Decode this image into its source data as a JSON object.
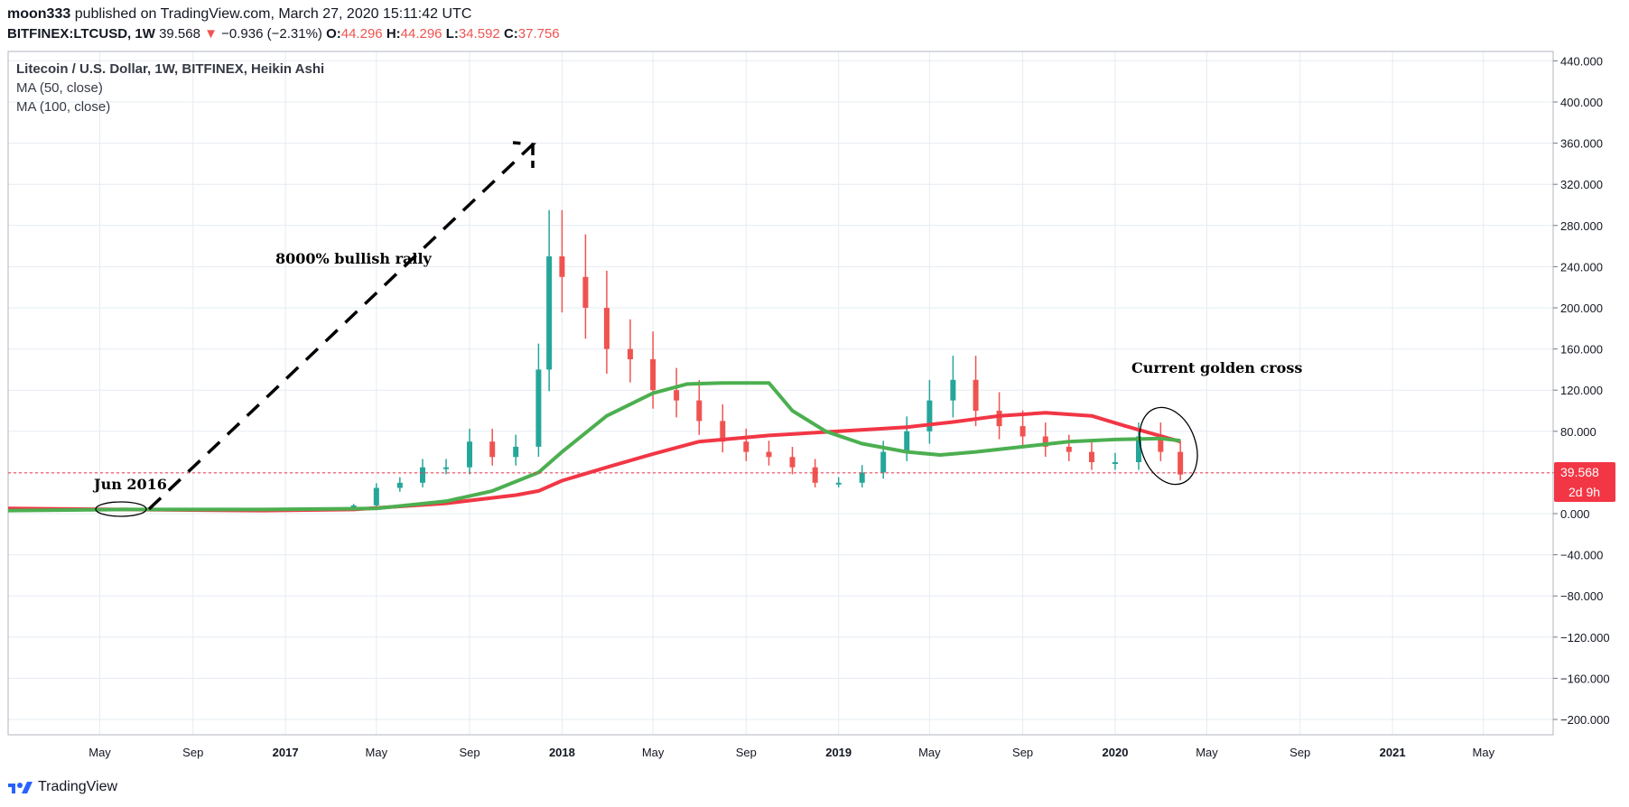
{
  "header": {
    "author": "moon333",
    "published_text": "published on TradingView.com, March 27, 2020 15:11:42 UTC",
    "symbol": "BITFINEX:LTCUSD, 1W",
    "last": "39.568",
    "down_arrow": "▼",
    "change": "−0.936 (−2.31%)",
    "open_label": "O:",
    "open": "44.296",
    "high_label": "H:",
    "high": "44.296",
    "low_label": "L:",
    "low": "34.592",
    "close_label": "C:",
    "close": "37.756"
  },
  "legend": {
    "title": "Litecoin / U.S. Dollar, 1W, BITFINEX, Heikin Ashi",
    "ma1": "MA (50, close)",
    "ma2": "MA (100, close)"
  },
  "price_tag": {
    "value": "39.568",
    "countdown": "2d 9h"
  },
  "brand": {
    "name": "TradingView"
  },
  "colors": {
    "up": "#26a69a",
    "down": "#ef5350",
    "ma50": "#4caf50",
    "ma100": "#f23645",
    "price_line": "#f23645",
    "grid": "#e6ecf2"
  },
  "chart_data": {
    "type": "line",
    "title": "Litecoin / U.S. Dollar, 1W, BITFINEX, Heikin Ashi",
    "ylim": [
      -210,
      450
    ],
    "y_ticks": [
      "440.000",
      "400.000",
      "360.000",
      "320.000",
      "280.000",
      "240.000",
      "200.000",
      "160.000",
      "120.000",
      "80.000",
      "40.000",
      "0.000",
      "−40.000",
      "−80.000",
      "−120.000",
      "−160.000",
      "−200.000"
    ],
    "x_range": [
      "2016-01-01",
      "2021-08-01"
    ],
    "x_ticks": [
      {
        "label": "May",
        "date": "2016-05-01"
      },
      {
        "label": "Sep",
        "date": "2016-09-01"
      },
      {
        "label": "2017",
        "date": "2017-01-01"
      },
      {
        "label": "May",
        "date": "2017-05-01"
      },
      {
        "label": "Sep",
        "date": "2017-09-01"
      },
      {
        "label": "2018",
        "date": "2018-01-01"
      },
      {
        "label": "May",
        "date": "2018-05-01"
      },
      {
        "label": "Sep",
        "date": "2018-09-01"
      },
      {
        "label": "2019",
        "date": "2019-01-01"
      },
      {
        "label": "May",
        "date": "2019-05-01"
      },
      {
        "label": "Sep",
        "date": "2019-09-01"
      },
      {
        "label": "2020",
        "date": "2020-01-01"
      },
      {
        "label": "May",
        "date": "2020-05-01"
      },
      {
        "label": "Sep",
        "date": "2020-09-01"
      },
      {
        "label": "2021",
        "date": "2021-01-01"
      },
      {
        "label": "May",
        "date": "2021-05-01"
      }
    ],
    "series": [
      {
        "name": "MA (50, close)",
        "color": "#4caf50",
        "x": [
          "2016-01-01",
          "2016-06-01",
          "2016-12-01",
          "2017-05-01",
          "2017-08-01",
          "2017-10-01",
          "2017-12-01",
          "2018-01-01",
          "2018-03-01",
          "2018-05-01",
          "2018-06-15",
          "2018-08-01",
          "2018-10-01",
          "2018-11-01",
          "2018-12-15",
          "2019-02-01",
          "2019-04-01",
          "2019-05-15",
          "2019-07-01",
          "2019-09-01",
          "2019-11-01",
          "2020-01-01",
          "2020-03-01",
          "2020-03-27"
        ],
        "values": [
          3,
          4,
          4,
          5,
          12,
          22,
          40,
          60,
          95,
          117,
          126,
          127,
          127,
          100,
          80,
          68,
          60,
          57,
          60,
          65,
          70,
          72,
          73,
          71
        ]
      },
      {
        "name": "MA (100, close)",
        "color": "#f23645",
        "x": [
          "2016-01-01",
          "2016-06-01",
          "2016-12-01",
          "2017-04-01",
          "2017-08-01",
          "2017-11-01",
          "2017-12-01",
          "2018-01-01",
          "2018-03-01",
          "2018-05-01",
          "2018-07-01",
          "2018-10-01",
          "2019-01-01",
          "2019-04-01",
          "2019-06-01",
          "2019-08-01",
          "2019-10-01",
          "2019-12-01",
          "2020-01-15",
          "2020-03-27"
        ],
        "values": [
          5,
          4,
          3,
          4,
          10,
          18,
          22,
          32,
          45,
          58,
          70,
          76,
          80,
          84,
          89,
          95,
          98,
          95,
          85,
          70
        ]
      },
      {
        "name": "",
        "type": "candlestick",
        "up_color": "#26a69a",
        "down_color": "#ef5350",
        "x": [
          "2017-02-01",
          "2017-03-01",
          "2017-04-01",
          "2017-05-01",
          "2017-06-01",
          "2017-07-01",
          "2017-08-01",
          "2017-09-01",
          "2017-10-01",
          "2017-11-01",
          "2017-12-01",
          "2017-12-15",
          "2018-01-01",
          "2018-02-01",
          "2018-03-01",
          "2018-04-01",
          "2018-05-01",
          "2018-06-01",
          "2018-07-01",
          "2018-08-01",
          "2018-09-01",
          "2018-10-01",
          "2018-11-01",
          "2018-12-01",
          "2019-01-01",
          "2019-02-01",
          "2019-03-01",
          "2019-04-01",
          "2019-05-01",
          "2019-06-01",
          "2019-07-01",
          "2019-08-01",
          "2019-09-01",
          "2019-10-01",
          "2019-11-01",
          "2019-12-01",
          "2020-01-01",
          "2020-02-01",
          "2020-03-01",
          "2020-03-27"
        ],
        "values": [
          4,
          4,
          8,
          25,
          30,
          45,
          45,
          70,
          55,
          65,
          140,
          250,
          230,
          200,
          160,
          150,
          120,
          110,
          90,
          70,
          60,
          55,
          45,
          30,
          30,
          40,
          60,
          80,
          110,
          130,
          100,
          85,
          75,
          65,
          60,
          50,
          50,
          75,
          60,
          38
        ]
      }
    ],
    "price_line": 39.568,
    "annotations": [
      "8000% bullish rally",
      "Jun 2016",
      "Current golden cross"
    ]
  }
}
